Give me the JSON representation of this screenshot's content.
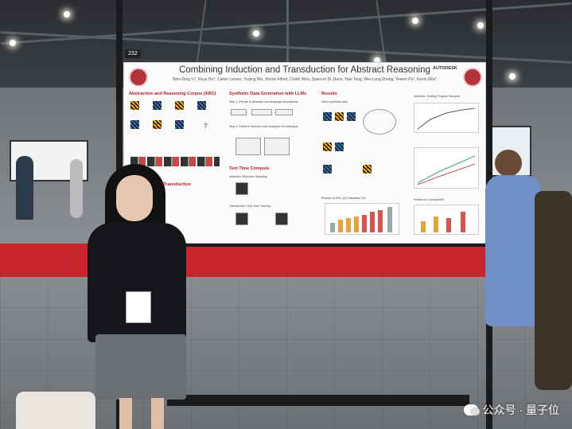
{
  "poster": {
    "board_number": "232",
    "title": "Combining Induction and Transduction for Abstract Reasoning",
    "authors": "Wen-Ding Li*, Keya Hu*, Carter Larsen, Yuqing Wu, Simon Alford, Caleb Woo, Spencer M. Dunn, Hao Tang, Wei-Long Zheng, Yewen Pu*, Kevin Ellis*",
    "sponsor": "AUTODESK",
    "sections": {
      "arc": "Abstraction and Reasoning Corpus (ARC)",
      "synthetic": "Synthetic Data Generation with LLMs",
      "results": "Results",
      "test_time": "Test Time Compute",
      "induction": "& Transduction"
    },
    "snippets": {
      "step1": "Step 1: Prompt to generate new language descriptions",
      "step2": "Step 2: Retrieve relevant code examples for strategies",
      "same": "Same synthetic data",
      "rejection": "Induction: Rejection Sampling",
      "transduction": "Transduction: Test-Time Training",
      "scaling": "Induction: Scaling Program Samples",
      "results_arc": "Results on ARC-AGI Validation Set",
      "concept": "Results on ConceptARC"
    }
  },
  "watermark": {
    "text": "公众号 · 量子位"
  },
  "colors": {
    "accent_red": "#b21f2a",
    "carpet": "#c8242c"
  }
}
